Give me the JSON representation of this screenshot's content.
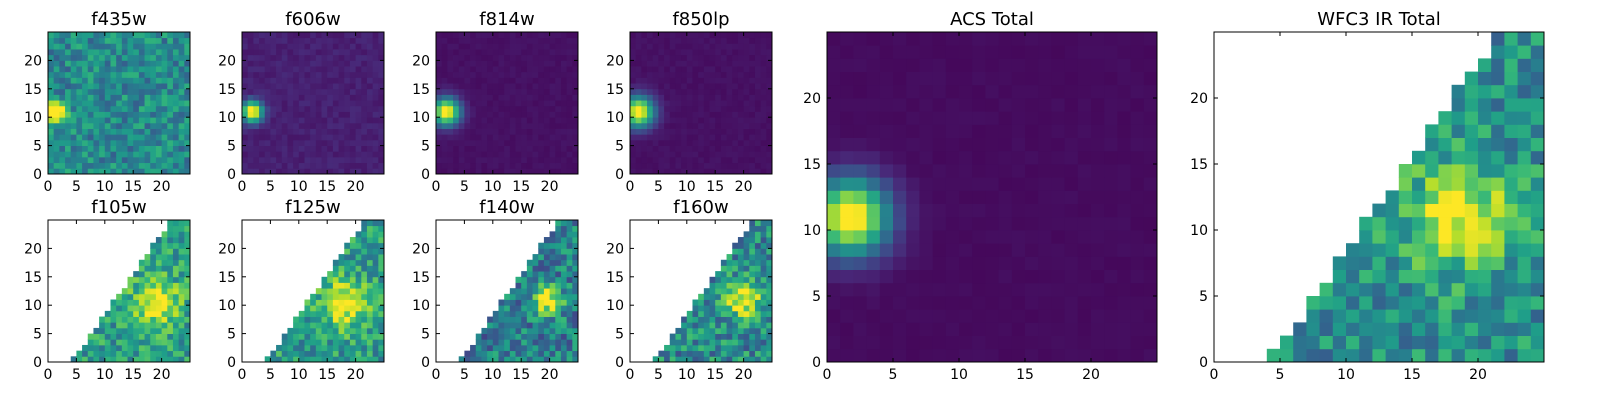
{
  "figure": {
    "background": "#ffffff",
    "colormap": "viridis"
  },
  "chart_data": [
    {
      "type": "heatmap",
      "title": "f435w",
      "image": "f435w",
      "xticks": [
        0,
        5,
        10,
        15,
        20
      ],
      "yticks": [
        0,
        5,
        10,
        15,
        20
      ],
      "xlim": [
        0,
        25
      ],
      "ylim": [
        0,
        25
      ],
      "grid": false
    },
    {
      "type": "heatmap",
      "title": "f606w",
      "image": "f606w",
      "xticks": [
        0,
        5,
        10,
        15,
        20
      ],
      "yticks": [
        0,
        5,
        10,
        15,
        20
      ],
      "xlim": [
        0,
        25
      ],
      "ylim": [
        0,
        25
      ],
      "grid": false
    },
    {
      "type": "heatmap",
      "title": "f814w",
      "image": "f814w",
      "xticks": [
        0,
        5,
        10,
        15,
        20
      ],
      "yticks": [
        0,
        5,
        10,
        15,
        20
      ],
      "xlim": [
        0,
        25
      ],
      "ylim": [
        0,
        25
      ],
      "grid": false
    },
    {
      "type": "heatmap",
      "title": "f850lp",
      "image": "f850lp",
      "xticks": [
        0,
        5,
        10,
        15,
        20
      ],
      "yticks": [
        0,
        5,
        10,
        15,
        20
      ],
      "xlim": [
        0,
        25
      ],
      "ylim": [
        0,
        25
      ],
      "grid": false
    },
    {
      "type": "heatmap",
      "title": "f105w",
      "image": "f105w",
      "xticks": [
        0,
        5,
        10,
        15,
        20
      ],
      "yticks": [
        0,
        5,
        10,
        15,
        20
      ],
      "xlim": [
        0,
        25
      ],
      "ylim": [
        0,
        25
      ],
      "grid": false
    },
    {
      "type": "heatmap",
      "title": "f125w",
      "image": "f125w",
      "xticks": [
        0,
        5,
        10,
        15,
        20
      ],
      "yticks": [
        0,
        5,
        10,
        15,
        20
      ],
      "xlim": [
        0,
        25
      ],
      "ylim": [
        0,
        25
      ],
      "grid": false
    },
    {
      "type": "heatmap",
      "title": "f140w",
      "image": "f140w",
      "xticks": [
        0,
        5,
        10,
        15,
        20
      ],
      "yticks": [
        0,
        5,
        10,
        15,
        20
      ],
      "xlim": [
        0,
        25
      ],
      "ylim": [
        0,
        25
      ],
      "grid": false
    },
    {
      "type": "heatmap",
      "title": "f160w",
      "image": "f160w",
      "xticks": [
        0,
        5,
        10,
        15,
        20
      ],
      "yticks": [
        0,
        5,
        10,
        15,
        20
      ],
      "xlim": [
        0,
        25
      ],
      "ylim": [
        0,
        25
      ],
      "grid": false
    },
    {
      "type": "heatmap",
      "title": "ACS Total",
      "image": "ACS Total",
      "xticks": [
        0,
        5,
        10,
        15,
        20
      ],
      "yticks": [
        0,
        5,
        10,
        15,
        20
      ],
      "xlim": [
        0,
        25
      ],
      "ylim": [
        0,
        25
      ],
      "grid": false
    },
    {
      "type": "heatmap",
      "title": "WFC3 IR Total",
      "image": "WFC3 IR Total",
      "xticks": [
        0,
        5,
        10,
        15,
        20
      ],
      "yticks": [
        0,
        5,
        10,
        15,
        20
      ],
      "xlim": [
        0,
        25
      ],
      "ylim": [
        0,
        25
      ],
      "grid": false
    }
  ]
}
